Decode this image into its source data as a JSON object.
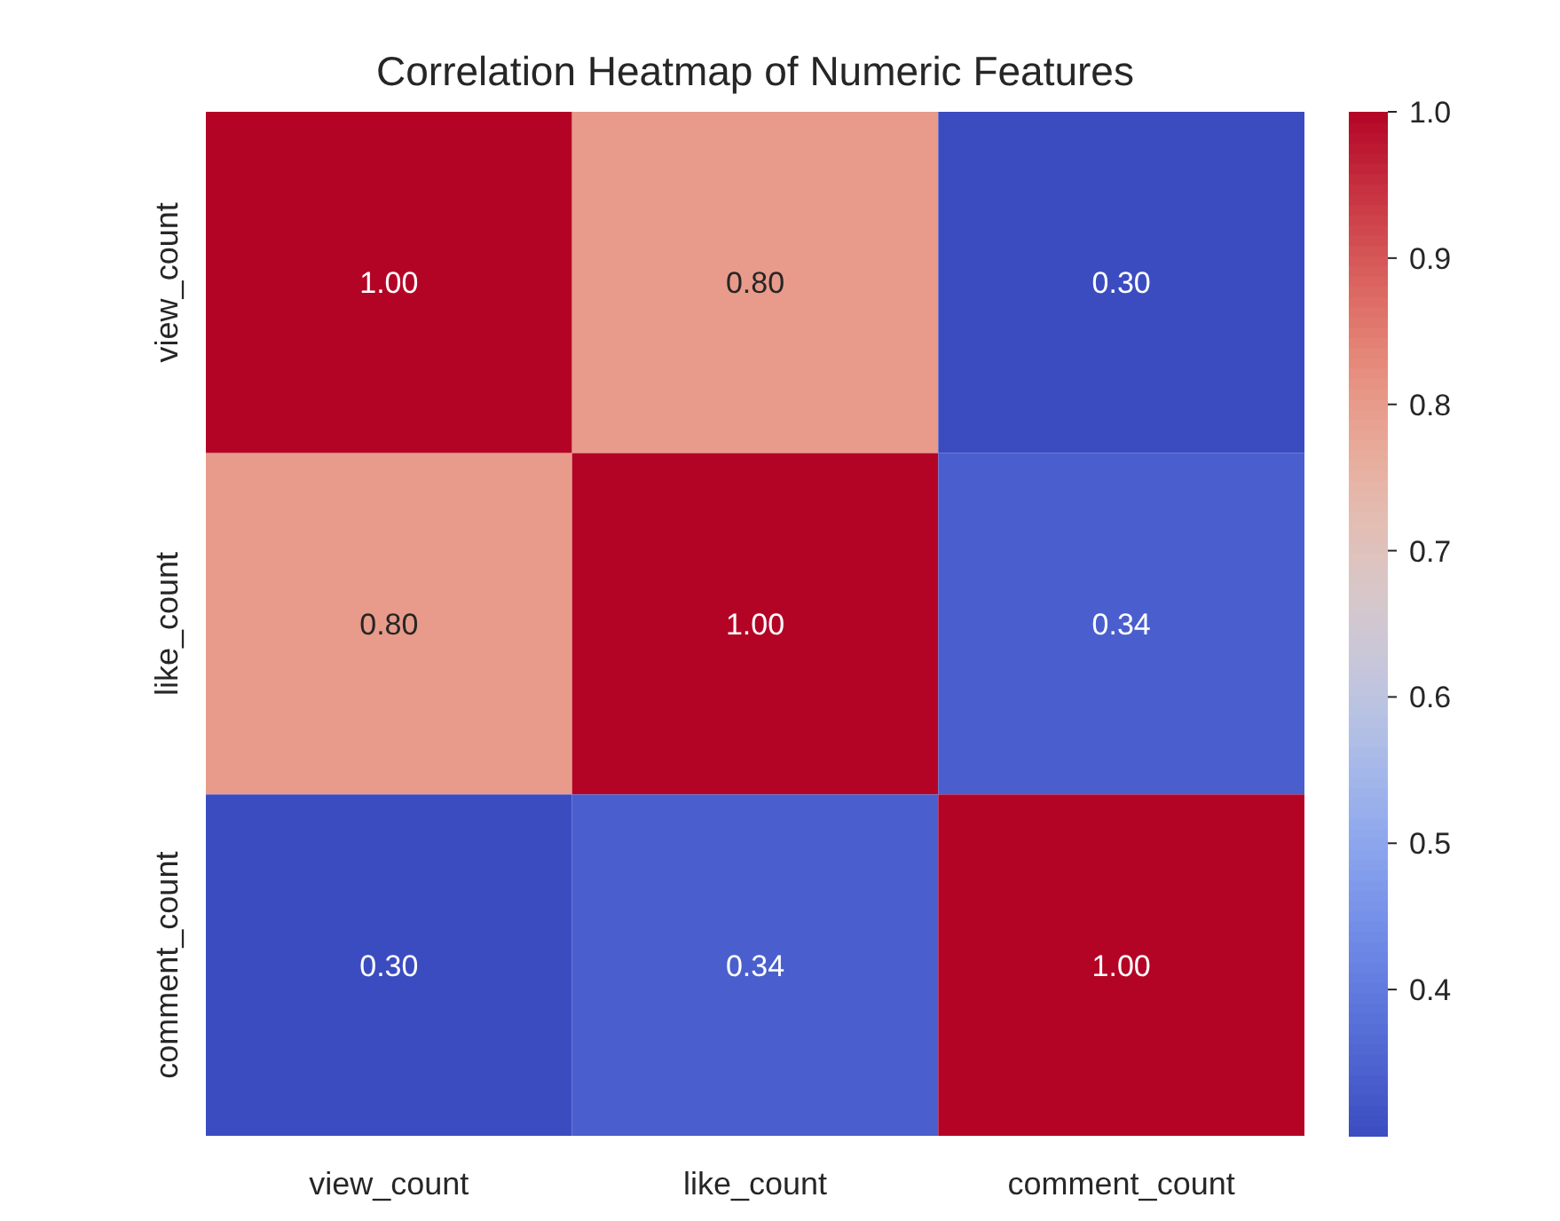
{
  "chart_data": {
    "type": "heatmap",
    "title": "Correlation Heatmap of Numeric Features",
    "categories": [
      "view_count",
      "like_count",
      "comment_count"
    ],
    "y_categories": [
      "view_count",
      "like_count",
      "comment_count"
    ],
    "cells": [
      [
        1.0,
        0.8,
        0.3
      ],
      [
        0.8,
        1.0,
        0.34
      ],
      [
        0.3,
        0.34,
        1.0
      ]
    ],
    "cell_labels": [
      [
        "1.00",
        "0.80",
        "0.30"
      ],
      [
        "0.80",
        "1.00",
        "0.34"
      ],
      [
        "0.30",
        "0.34",
        "1.00"
      ]
    ],
    "clim": [
      0.3,
      1.0
    ],
    "cticks": [
      0.4,
      0.5,
      0.6,
      0.7,
      0.8,
      0.9,
      {
        "value": 1,
        "label": "1.0"
      }
    ]
  }
}
